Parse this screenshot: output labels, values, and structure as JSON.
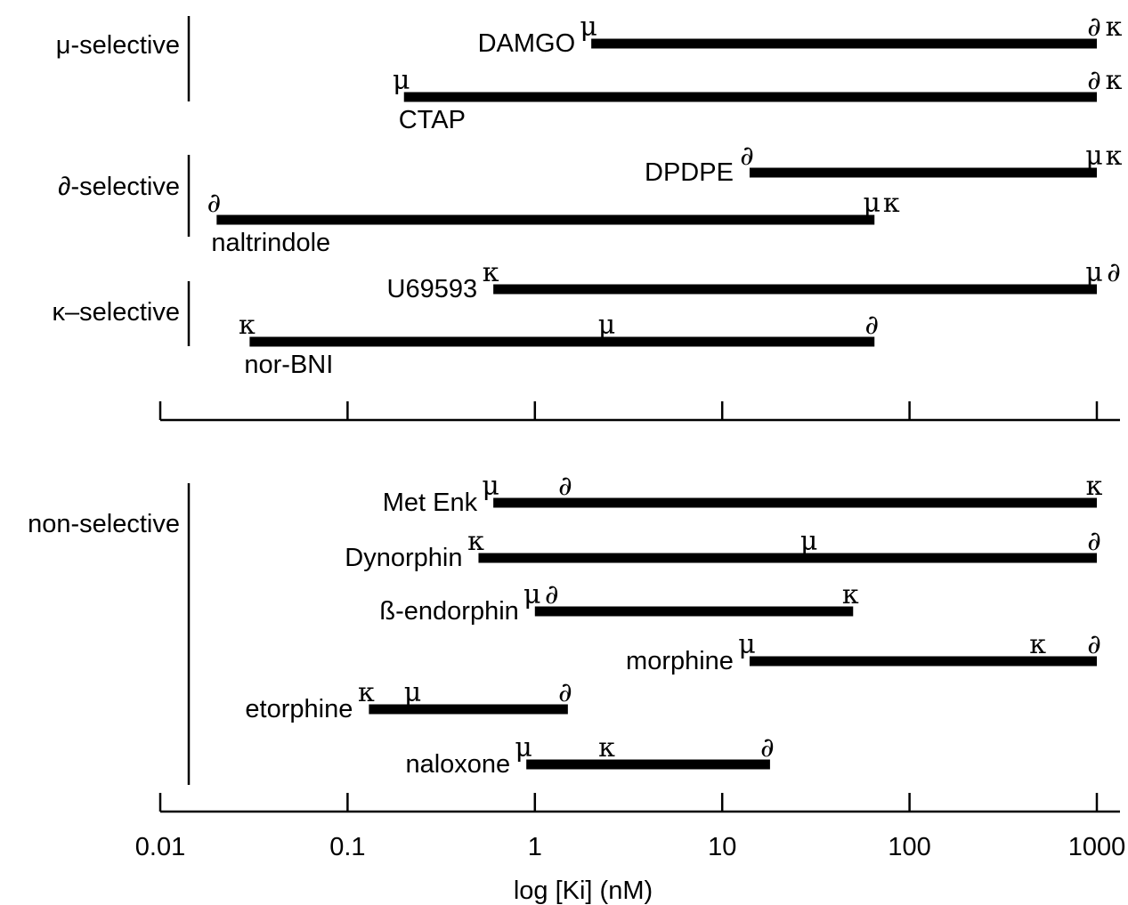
{
  "chart_data": {
    "type": "range-bar",
    "xlabel": "log [Ki] (nM)",
    "xscale": "log",
    "xlim": [
      0.01,
      1000
    ],
    "tick_values": [
      0.01,
      0.1,
      1,
      10,
      100,
      1000
    ],
    "tick_labels": [
      "0.01",
      "0.1",
      "1",
      "10",
      "100",
      "1000"
    ],
    "groups": [
      {
        "id": "mu",
        "label": "μ-selective",
        "drugs": [
          "DAMGO",
          "CTAP"
        ]
      },
      {
        "id": "delta",
        "label": "∂-selective",
        "drugs": [
          "DPDPE",
          "naltrindole"
        ]
      },
      {
        "id": "kappa",
        "label": "κ–selective",
        "drugs": [
          "U69593",
          "nor-BNI"
        ]
      },
      {
        "id": "nonsel",
        "label": "non-selective",
        "drugs": [
          "Met Enk",
          "Dynorphin",
          "ß-endorphin",
          "morphine",
          "etorphine",
          "naloxone"
        ]
      }
    ],
    "series": [
      {
        "name": "DAMGO",
        "panel": "top",
        "label_pos": "left",
        "x0": 2,
        "x1": 1000,
        "receptors": [
          {
            "symbol": "μ",
            "ki": 2
          },
          {
            "symbol": "∂",
            "ki": 1000
          },
          {
            "symbol": "κ",
            "ki": 1000
          }
        ]
      },
      {
        "name": "CTAP",
        "panel": "top",
        "label_pos": "below",
        "x0": 0.2,
        "x1": 1000,
        "receptors": [
          {
            "symbol": "μ",
            "ki": 0.2
          },
          {
            "symbol": "∂",
            "ki": 1000
          },
          {
            "symbol": "κ",
            "ki": 1000
          }
        ]
      },
      {
        "name": "DPDPE",
        "panel": "top",
        "label_pos": "left",
        "x0": 14,
        "x1": 1000,
        "receptors": [
          {
            "symbol": "∂",
            "ki": 14
          },
          {
            "symbol": "μ",
            "ki": 1000
          },
          {
            "symbol": "κ",
            "ki": 1000
          }
        ]
      },
      {
        "name": "naltrindole",
        "panel": "top",
        "label_pos": "below",
        "x0": 0.02,
        "x1": 65,
        "receptors": [
          {
            "symbol": "∂",
            "ki": 0.02
          },
          {
            "symbol": "μ",
            "ki": 65
          },
          {
            "symbol": "κ",
            "ki": 65
          }
        ]
      },
      {
        "name": "U69593",
        "panel": "top",
        "label_pos": "left",
        "x0": 0.6,
        "x1": 1000,
        "receptors": [
          {
            "symbol": "κ",
            "ki": 0.6
          },
          {
            "symbol": "μ",
            "ki": 1000
          },
          {
            "symbol": "∂",
            "ki": 1000
          }
        ]
      },
      {
        "name": "nor-BNI",
        "panel": "top",
        "label_pos": "below",
        "x0": 0.03,
        "x1": 65,
        "receptors": [
          {
            "symbol": "κ",
            "ki": 0.03
          },
          {
            "symbol": "μ",
            "ki": 2.5
          },
          {
            "symbol": "∂",
            "ki": 65
          }
        ]
      },
      {
        "name": "Met Enk",
        "panel": "bottom",
        "label_pos": "left",
        "x0": 0.6,
        "x1": 1000,
        "receptors": [
          {
            "symbol": "μ",
            "ki": 0.6
          },
          {
            "symbol": "∂",
            "ki": 1.5
          },
          {
            "symbol": "κ",
            "ki": 1000
          }
        ]
      },
      {
        "name": "Dynorphin",
        "panel": "bottom",
        "label_pos": "left",
        "x0": 0.5,
        "x1": 1000,
        "receptors": [
          {
            "symbol": "κ",
            "ki": 0.5
          },
          {
            "symbol": "μ",
            "ki": 30
          },
          {
            "symbol": "∂",
            "ki": 1000
          }
        ]
      },
      {
        "name": "ß-endorphin",
        "panel": "bottom",
        "label_pos": "left",
        "x0": 1,
        "x1": 50,
        "receptors": [
          {
            "symbol": "μ",
            "ki": 1
          },
          {
            "symbol": "∂",
            "ki": 1
          },
          {
            "symbol": "κ",
            "ki": 50
          }
        ]
      },
      {
        "name": "morphine",
        "panel": "bottom",
        "label_pos": "left",
        "x0": 14,
        "x1": 1000,
        "receptors": [
          {
            "symbol": "μ",
            "ki": 14
          },
          {
            "symbol": "κ",
            "ki": 500
          },
          {
            "symbol": "∂",
            "ki": 1000
          }
        ]
      },
      {
        "name": "etorphine",
        "panel": "bottom",
        "label_pos": "left",
        "x0": 0.13,
        "x1": 1.5,
        "receptors": [
          {
            "symbol": "κ",
            "ki": 0.13
          },
          {
            "symbol": "μ",
            "ki": 0.23
          },
          {
            "symbol": "∂",
            "ki": 1.5
          }
        ]
      },
      {
        "name": "naloxone",
        "panel": "bottom",
        "label_pos": "left",
        "x0": 0.9,
        "x1": 18,
        "receptors": [
          {
            "symbol": "μ",
            "ki": 0.9
          },
          {
            "symbol": "κ",
            "ki": 2.5
          },
          {
            "symbol": "∂",
            "ki": 18
          }
        ]
      }
    ]
  }
}
